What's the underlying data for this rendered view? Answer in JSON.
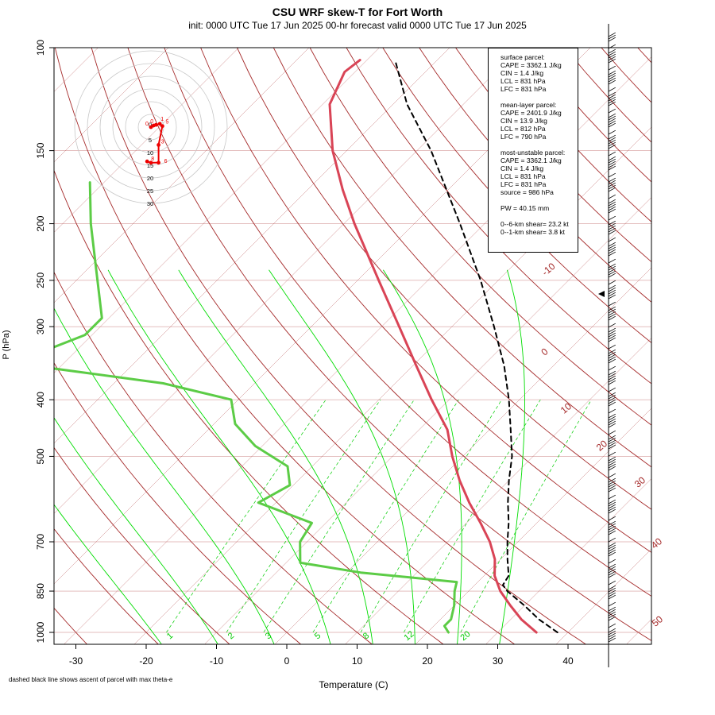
{
  "title": "CSU WRF skew-T for Fort Worth",
  "subtitle": "init: 0000 UTC Tue 17 Jun 2025     00-hr forecast valid 0000 UTC Tue 17 Jun 2025",
  "footnote": "dashed black line shows ascent of parcel with max theta-e",
  "info": {
    "surface_header": "surface parcel:",
    "surface_cape": "CAPE = 3362.1 J/kg",
    "surface_cin": "CIN = 1.4 J/kg",
    "surface_lcl": "LCL = 831 hPa",
    "surface_lfc": "LFC = 831 hPa",
    "ml_header": "mean-layer parcel:",
    "ml_cape": "CAPE = 2401.9 J/kg",
    "ml_cin": "CIN = 13.9 J/kg",
    "ml_lcl": "LCL = 812 hPa",
    "ml_lfc": "LFC = 790 hPa",
    "mu_header": "most-unstable parcel:",
    "mu_cape": "CAPE = 3362.1 J/kg",
    "mu_cin": "CIN = 1.4 J/kg",
    "mu_lcl": "LCL = 831 hPa",
    "mu_lfc": "LFC = 831 hPa",
    "mu_source": "source = 986 hPa",
    "pw": "PW =  40.15 mm",
    "shear6": "0--6-km shear= 23.2 kt",
    "shear1": "0--1-km shear= 3.8 kt"
  },
  "chart_data": {
    "type": "line",
    "title": "CSU WRF skew-T for Fort Worth",
    "xlabel": "Temperature (C)",
    "ylabel": "P (hPa)",
    "x_ticks": [
      -30,
      -20,
      -10,
      0,
      10,
      20,
      30,
      40
    ],
    "y_ticks": [
      100,
      150,
      200,
      250,
      300,
      400,
      500,
      700,
      850,
      1000
    ],
    "isotherm_labels": [
      "-10",
      "0",
      "10",
      "20",
      "30",
      "40",
      "50"
    ],
    "mixing_ratio_labels": [
      "1",
      "2",
      "3",
      "5",
      "8",
      "12",
      "20"
    ],
    "colors": {
      "temperature": "#d94456",
      "dewpoint": "#5ccc46",
      "parcel": "#000000",
      "isotherm": "#a52a2a",
      "dry_adiabat": "#a52a2a",
      "moist_adiabat": "#00dd00",
      "mixing_ratio": "#00cc00",
      "hodograph": "#ee0000"
    },
    "series": [
      {
        "name": "temperature",
        "points": [
          {
            "p": 1000,
            "t": 35.5
          },
          {
            "p": 950,
            "t": 31.5
          },
          {
            "p": 900,
            "t": 28.0
          },
          {
            "p": 850,
            "t": 24.5
          },
          {
            "p": 800,
            "t": 21.5
          },
          {
            "p": 750,
            "t": 19.2
          },
          {
            "p": 700,
            "t": 16.0
          },
          {
            "p": 650,
            "t": 12.0
          },
          {
            "p": 600,
            "t": 7.5
          },
          {
            "p": 550,
            "t": 3.0
          },
          {
            "p": 500,
            "t": -1.5
          },
          {
            "p": 450,
            "t": -6.0
          },
          {
            "p": 400,
            "t": -12.5
          },
          {
            "p": 350,
            "t": -19.5
          },
          {
            "p": 300,
            "t": -27.5
          },
          {
            "p": 250,
            "t": -37.0
          },
          {
            "p": 200,
            "t": -48.5
          },
          {
            "p": 175,
            "t": -55.0
          },
          {
            "p": 150,
            "t": -62.0
          },
          {
            "p": 125,
            "t": -69.0
          },
          {
            "p": 110,
            "t": -71.5
          },
          {
            "p": 105,
            "t": -71.0
          }
        ]
      },
      {
        "name": "dewpoint",
        "points": [
          {
            "p": 1000,
            "t": 23.0
          },
          {
            "p": 975,
            "t": 21.5
          },
          {
            "p": 950,
            "t": 21.5
          },
          {
            "p": 900,
            "t": 20.0
          },
          {
            "p": 850,
            "t": 18.0
          },
          {
            "p": 820,
            "t": 17.0
          },
          {
            "p": 790,
            "t": 2.0
          },
          {
            "p": 760,
            "t": -8.0
          },
          {
            "p": 700,
            "t": -11.0
          },
          {
            "p": 650,
            "t": -12.0
          },
          {
            "p": 600,
            "t": -22.5
          },
          {
            "p": 560,
            "t": -20.5
          },
          {
            "p": 520,
            "t": -23.5
          },
          {
            "p": 480,
            "t": -31.0
          },
          {
            "p": 440,
            "t": -37.0
          },
          {
            "p": 400,
            "t": -41.0
          },
          {
            "p": 375,
            "t": -53.0
          },
          {
            "p": 350,
            "t": -74.0
          },
          {
            "p": 330,
            "t": -74.5
          },
          {
            "p": 310,
            "t": -71.0
          },
          {
            "p": 290,
            "t": -71.0
          },
          {
            "p": 250,
            "t": -77.0
          },
          {
            "p": 200,
            "t": -86.0
          },
          {
            "p": 170,
            "t": -92.0
          }
        ]
      },
      {
        "name": "parcel",
        "points": [
          {
            "p": 1000,
            "t": 38.5
          },
          {
            "p": 950,
            "t": 34.0
          },
          {
            "p": 900,
            "t": 30.0
          },
          {
            "p": 850,
            "t": 25.5
          },
          {
            "p": 830,
            "t": 24.0
          },
          {
            "p": 800,
            "t": 23.5
          },
          {
            "p": 750,
            "t": 21.0
          },
          {
            "p": 700,
            "t": 18.5
          },
          {
            "p": 650,
            "t": 16.0
          },
          {
            "p": 600,
            "t": 13.0
          },
          {
            "p": 550,
            "t": 10.0
          },
          {
            "p": 500,
            "t": 7.0
          },
          {
            "p": 450,
            "t": 3.0
          },
          {
            "p": 400,
            "t": -1.5
          },
          {
            "p": 350,
            "t": -7.0
          },
          {
            "p": 300,
            "t": -14.0
          },
          {
            "p": 250,
            "t": -22.5
          },
          {
            "p": 200,
            "t": -33.5
          },
          {
            "p": 150,
            "t": -48.0
          },
          {
            "p": 125,
            "t": -58.0
          },
          {
            "p": 105,
            "t": -66.0
          }
        ]
      }
    ],
    "hodograph": {
      "ring_labels": [
        "0",
        "5",
        "10",
        "15",
        "20",
        "25",
        "30"
      ],
      "point_labels": [
        "0",
        "0",
        "1",
        "5",
        "3",
        "6",
        "8"
      ],
      "points": [
        {
          "u": 0.0,
          "v": 0.0
        },
        {
          "u": 1.0,
          "v": 0.6
        },
        {
          "u": 2.0,
          "v": 0.9
        },
        {
          "u": 3.5,
          "v": 1.3
        },
        {
          "u": 4.5,
          "v": 0.4
        },
        {
          "u": 3.0,
          "v": -7.0
        },
        {
          "u": 3.0,
          "v": -14.0
        },
        {
          "u": 0.0,
          "v": -14.0
        },
        {
          "u": -1.5,
          "v": -13.5
        }
      ]
    },
    "grid": true,
    "legend": "none"
  }
}
